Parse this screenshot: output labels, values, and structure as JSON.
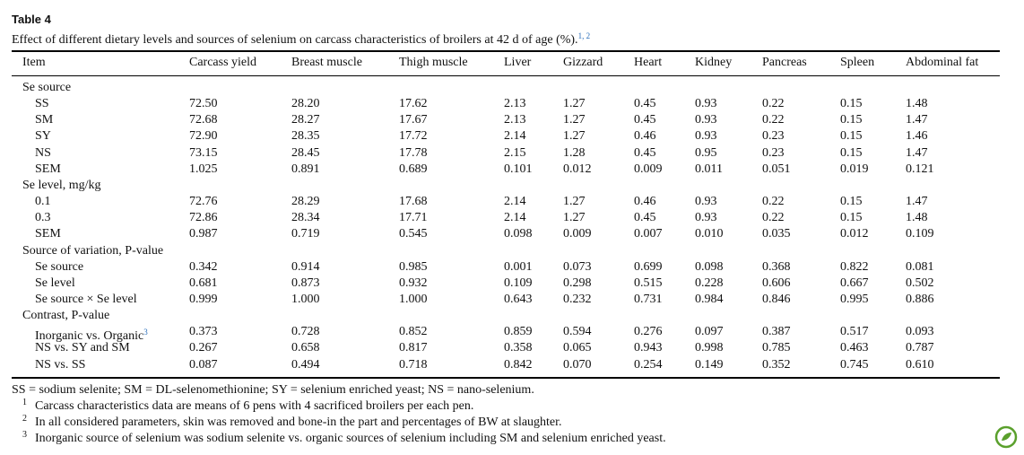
{
  "header": {
    "title": "Table 4",
    "caption": "Effect of different dietary levels and sources of selenium on carcass characteristics of broilers at 42 d of age (%).",
    "caption_sup": "1, 2"
  },
  "table": {
    "columns": [
      "Item",
      "Carcass yield",
      "Breast muscle",
      "Thigh muscle",
      "Liver",
      "Gizzard",
      "Heart",
      "Kidney",
      "Pancreas",
      "Spleen",
      "Abdominal fat"
    ],
    "rows": [
      {
        "label": "Se source"
      },
      {
        "label": "SS",
        "values": [
          "72.50",
          "28.20",
          "17.62",
          "2.13",
          "1.27",
          "0.45",
          "0.93",
          "0.22",
          "0.15",
          "1.48"
        ]
      },
      {
        "label": "SM",
        "values": [
          "72.68",
          "28.27",
          "17.67",
          "2.13",
          "1.27",
          "0.45",
          "0.93",
          "0.22",
          "0.15",
          "1.47"
        ]
      },
      {
        "label": "SY",
        "values": [
          "72.90",
          "28.35",
          "17.72",
          "2.14",
          "1.27",
          "0.46",
          "0.93",
          "0.23",
          "0.15",
          "1.46"
        ]
      },
      {
        "label": "NS",
        "values": [
          "73.15",
          "28.45",
          "17.78",
          "2.15",
          "1.28",
          "0.45",
          "0.95",
          "0.23",
          "0.15",
          "1.47"
        ]
      },
      {
        "label": "SEM",
        "values": [
          "1.025",
          "0.891",
          "0.689",
          "0.101",
          "0.012",
          "0.009",
          "0.011",
          "0.051",
          "0.019",
          "0.121"
        ]
      },
      {
        "label": "Se level, mg/kg"
      },
      {
        "label": "0.1",
        "values": [
          "72.76",
          "28.29",
          "17.68",
          "2.14",
          "1.27",
          "0.46",
          "0.93",
          "0.22",
          "0.15",
          "1.47"
        ]
      },
      {
        "label": "0.3",
        "values": [
          "72.86",
          "28.34",
          "17.71",
          "2.14",
          "1.27",
          "0.45",
          "0.93",
          "0.22",
          "0.15",
          "1.48"
        ]
      },
      {
        "label": "SEM",
        "values": [
          "0.987",
          "0.719",
          "0.545",
          "0.098",
          "0.009",
          "0.007",
          "0.010",
          "0.035",
          "0.012",
          "0.109"
        ]
      },
      {
        "label": "Source of variation, P-value"
      },
      {
        "label": "Se source",
        "values": [
          "0.342",
          "0.914",
          "0.985",
          "0.001",
          "0.073",
          "0.699",
          "0.098",
          "0.368",
          "0.822",
          "0.081"
        ]
      },
      {
        "label": "Se level",
        "values": [
          "0.681",
          "0.873",
          "0.932",
          "0.109",
          "0.298",
          "0.515",
          "0.228",
          "0.606",
          "0.667",
          "0.502"
        ]
      },
      {
        "label": "Se source × Se level",
        "values": [
          "0.999",
          "1.000",
          "1.000",
          "0.643",
          "0.232",
          "0.731",
          "0.984",
          "0.846",
          "0.995",
          "0.886"
        ]
      },
      {
        "label": "Contrast, P-value"
      },
      {
        "label": "Inorganic vs. Organic",
        "sup": "3",
        "values": [
          "0.373",
          "0.728",
          "0.852",
          "0.859",
          "0.594",
          "0.276",
          "0.097",
          "0.387",
          "0.517",
          "0.093"
        ]
      },
      {
        "label": "NS vs. SY and SM",
        "values": [
          "0.267",
          "0.658",
          "0.817",
          "0.358",
          "0.065",
          "0.943",
          "0.998",
          "0.785",
          "0.463",
          "0.787"
        ]
      },
      {
        "label": "NS vs. SS",
        "values": [
          "0.087",
          "0.494",
          "0.718",
          "0.842",
          "0.070",
          "0.254",
          "0.149",
          "0.352",
          "0.745",
          "0.610"
        ]
      }
    ]
  },
  "footer": {
    "abbreviations": "SS = sodium selenite; SM = DL-selenomethionine; SY = selenium enriched yeast; NS = nano-selenium.",
    "notes": [
      {
        "mark": "1",
        "text": "Carcass characteristics data are means of 6 pens with 4 sacrificed broilers per each pen."
      },
      {
        "mark": "2",
        "text": "In all considered parameters, skin was removed and bone-in the part and percentages of BW at slaughter."
      },
      {
        "mark": "3",
        "text": "Inorganic source of selenium was sodium selenite vs. organic sources of selenium including SM and selenium enriched yeast."
      }
    ]
  }
}
